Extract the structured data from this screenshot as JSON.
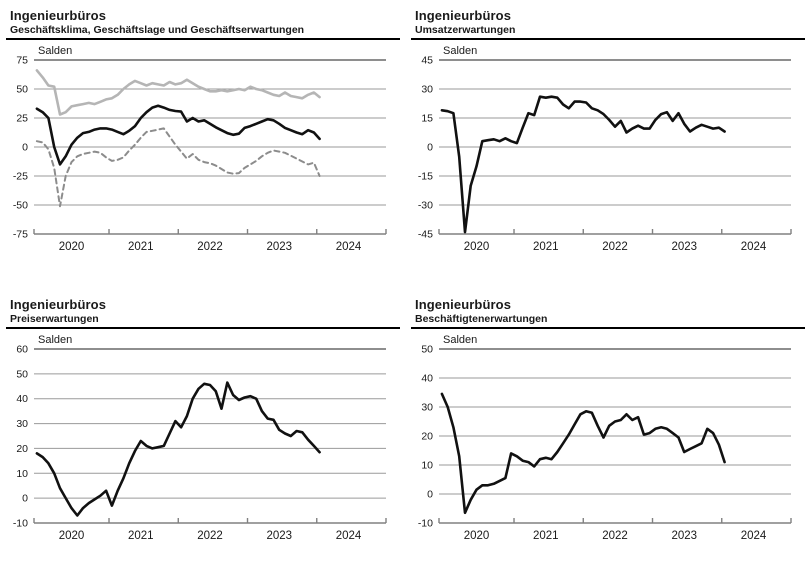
{
  "chart_data": [
    {
      "type": "line",
      "title": "Ingenieurbüros",
      "subtitle": "Geschäftsklima, Geschäftslage und Geschäftserwartungen",
      "unit_label": "Salden",
      "ymin": -75,
      "ymax": 75,
      "ystep": 25,
      "grid": true,
      "x_start_month": "2019-12",
      "x_end_month": "2024-01",
      "x_axis_years": [
        "2020",
        "2021",
        "2022",
        "2023",
        "2024"
      ],
      "series": [
        {
          "name": "Geschäftslage",
          "style": "solid",
          "color": "#b5b5b5",
          "width": 2.6,
          "values": [
            66,
            60,
            53,
            52,
            28,
            30,
            35,
            36,
            37,
            38,
            37,
            39,
            41,
            42,
            45,
            50,
            54,
            57,
            55,
            53,
            55,
            54,
            53,
            56,
            54,
            55,
            58,
            55,
            52,
            50,
            48,
            48,
            49,
            48,
            49,
            50,
            49,
            52,
            50,
            49,
            47,
            45,
            44,
            47,
            44,
            43,
            42,
            45,
            47,
            43
          ]
        },
        {
          "name": "Geschäftsklima",
          "style": "solid",
          "color": "#111111",
          "width": 2.6,
          "values": [
            33,
            30,
            25,
            0,
            -15,
            -8,
            2,
            8,
            12,
            13,
            15,
            16,
            16,
            15,
            13,
            11,
            14,
            18,
            25,
            30,
            34,
            35.5,
            34,
            32,
            31,
            30.5,
            22,
            25,
            22,
            23,
            20,
            17,
            14.5,
            12,
            10.5,
            11.5,
            16.5,
            18,
            20,
            22,
            24,
            23,
            20,
            16.5,
            14.5,
            12.5,
            11,
            14.5,
            12.5,
            7
          ]
        },
        {
          "name": "Geschäftserwartungen",
          "style": "dashed",
          "color": "#8c8c8c",
          "width": 2,
          "values": [
            5,
            4,
            -2,
            -18,
            -51,
            -25,
            -13,
            -8,
            -6,
            -5,
            -4,
            -5,
            -9,
            -12,
            -11,
            -9,
            -3,
            2,
            8,
            13,
            14,
            15,
            16,
            9,
            2,
            -4,
            -10,
            -6,
            -11,
            -13,
            -14,
            -16,
            -19,
            -22,
            -23,
            -22.5,
            -18,
            -15,
            -12,
            -8,
            -5,
            -3,
            -4,
            -5,
            -7.5,
            -10,
            -12.5,
            -15,
            -13.5,
            -25
          ]
        }
      ]
    },
    {
      "type": "line",
      "title": "Ingenieurbüros",
      "subtitle": "Umsatzerwartungen",
      "unit_label": "Salden",
      "ymin": -45,
      "ymax": 45,
      "ystep": 15,
      "grid": true,
      "x_start_month": "2019-12",
      "x_end_month": "2024-01",
      "x_axis_years": [
        "2020",
        "2021",
        "2022",
        "2023",
        "2024"
      ],
      "series": [
        {
          "name": "Umsatzerwartungen",
          "style": "solid",
          "color": "#111111",
          "width": 2.6,
          "values": [
            19,
            18.5,
            17.5,
            -5,
            -44,
            -20,
            -10,
            3,
            3.5,
            4,
            3,
            4.5,
            3,
            2,
            10,
            17.5,
            16.5,
            26,
            25.5,
            26,
            25.5,
            22,
            20,
            23.5,
            23.5,
            23,
            20,
            19,
            17,
            14,
            10.5,
            13.5,
            7.5,
            9.5,
            11,
            9.5,
            9.5,
            14,
            17,
            18,
            13.5,
            17.5,
            12,
            8,
            10,
            11.5,
            10.5,
            9.5,
            10,
            8
          ]
        }
      ]
    },
    {
      "type": "line",
      "title": "Ingenieurbüros",
      "subtitle": "Preiserwartungen",
      "unit_label": "Salden",
      "ymin": -10,
      "ymax": 60,
      "ystep": 10,
      "grid": true,
      "x_start_month": "2019-12",
      "x_end_month": "2024-01",
      "x_axis_years": [
        "2020",
        "2021",
        "2022",
        "2023",
        "2024"
      ],
      "series": [
        {
          "name": "Preiserwartungen",
          "style": "solid",
          "color": "#111111",
          "width": 2.6,
          "values": [
            18,
            16.5,
            14,
            10,
            4,
            0,
            -4,
            -7,
            -4,
            -2,
            -0.5,
            1,
            3,
            -3,
            3,
            8,
            14,
            19,
            23,
            21,
            20,
            20.5,
            21,
            26,
            31,
            28.5,
            33,
            40,
            44,
            46,
            45.5,
            43,
            36,
            46.5,
            41.5,
            39.5,
            40.5,
            41,
            40,
            35,
            32,
            31.5,
            27.5,
            26,
            25,
            27,
            26.5,
            23.5,
            21,
            18.5
          ]
        }
      ]
    },
    {
      "type": "line",
      "title": "Ingenieurbüros",
      "subtitle": "Beschäftigtenerwartungen",
      "unit_label": "Salden",
      "ymin": -10,
      "ymax": 50,
      "ystep": 10,
      "grid": true,
      "x_start_month": "2019-12",
      "x_end_month": "2024-01",
      "x_axis_years": [
        "2020",
        "2021",
        "2022",
        "2023",
        "2024"
      ],
      "series": [
        {
          "name": "Beschäftigtenerwartungen",
          "style": "solid",
          "color": "#111111",
          "width": 2.6,
          "values": [
            34.5,
            30,
            23,
            13,
            -6.5,
            -2,
            1.5,
            3,
            3,
            3.5,
            4.5,
            5.5,
            14,
            13,
            11.5,
            11,
            9.5,
            12,
            12.5,
            12,
            14.5,
            17.5,
            20.5,
            24,
            27.5,
            28.5,
            28,
            23.5,
            19.5,
            23.5,
            25,
            25.5,
            27.5,
            25.5,
            26.5,
            20.5,
            21,
            22.5,
            23,
            22.5,
            21,
            19.5,
            14.5,
            15.5,
            16.5,
            17.5,
            22.5,
            21,
            17,
            11
          ]
        }
      ]
    }
  ],
  "style": {
    "grid_color": "#9a9a9a",
    "top_grid_color": "#4a4a4a",
    "axis_color": "#808080",
    "text_color": "#1a1a1a"
  }
}
